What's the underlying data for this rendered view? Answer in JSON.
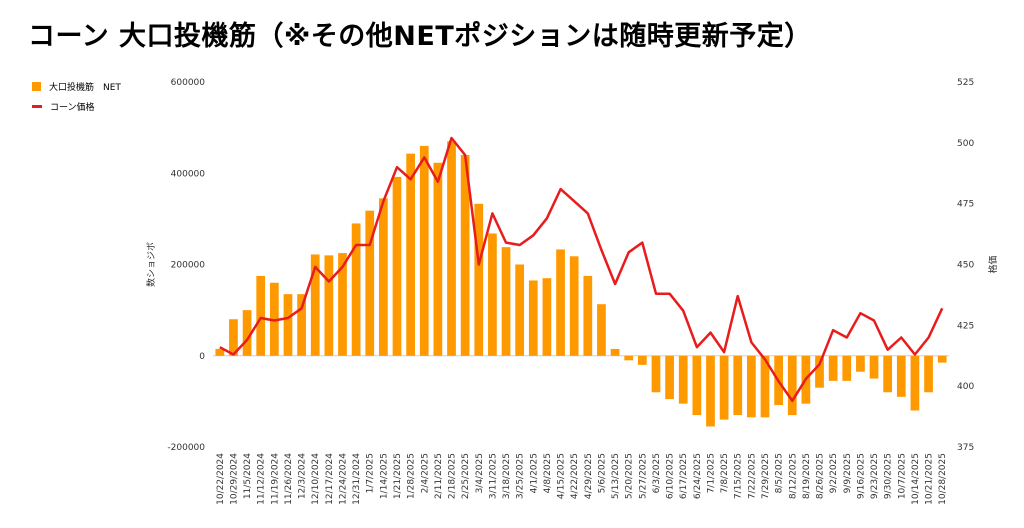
{
  "title": "コーン 大口投機筋（※その他NETポジションは随時更新予定）",
  "legend": [
    {
      "label": "大口投機筋　NET",
      "color": "#FF9900",
      "kind": "bar"
    },
    {
      "label": "コーン価格",
      "color": "#E81C1C",
      "kind": "line"
    }
  ],
  "chart_data": {
    "type": "bar+line",
    "categories": [
      "10/22/2024",
      "10/29/2024",
      "11/5/2024",
      "11/12/2024",
      "11/19/2024",
      "11/26/2024",
      "12/3/2024",
      "12/10/2024",
      "12/17/2024",
      "12/24/2024",
      "12/31/2024",
      "1/7/2025",
      "1/14/2025",
      "1/21/2025",
      "1/28/2025",
      "2/4/2025",
      "2/11/2025",
      "2/18/2025",
      "2/25/2025",
      "3/4/2025",
      "3/11/2025",
      "3/18/2025",
      "3/25/2025",
      "4/1/2025",
      "4/8/2025",
      "4/15/2025",
      "4/22/2025",
      "4/29/2025",
      "5/6/2025",
      "5/13/2025",
      "5/20/2025",
      "5/27/2025",
      "6/3/2025",
      "6/10/2025",
      "6/17/2025",
      "6/24/2025",
      "7/1/2025",
      "7/8/2025",
      "7/15/2025",
      "7/22/2025",
      "7/29/2025",
      "8/5/2025",
      "8/12/2025",
      "8/19/2025",
      "8/26/2025",
      "9/2/2025",
      "9/9/2025",
      "9/16/2025",
      "9/23/2025",
      "9/30/2025",
      "10/7/2025",
      "10/14/2025",
      "10/21/2025",
      "10/28/2025"
    ],
    "series": [
      {
        "name": "大口投機筋　NET",
        "axis": "left",
        "type": "bar",
        "color": "#FF9900",
        "values": [
          15000,
          80000,
          100000,
          175000,
          160000,
          135000,
          135000,
          222000,
          220000,
          225000,
          290000,
          318000,
          345000,
          392000,
          443000,
          460000,
          423000,
          470000,
          440000,
          333000,
          268000,
          238000,
          200000,
          165000,
          170000,
          233000,
          218000,
          175000,
          113000,
          15000,
          -10000,
          -20000,
          -80000,
          -95000,
          -105000,
          -130000,
          -155000,
          -140000,
          -130000,
          -135000,
          -135000,
          -108000,
          -130000,
          -105000,
          -70000,
          -55000,
          -55000,
          -35000,
          -50000,
          -80000,
          -90000,
          -120000,
          -80000,
          -15000
        ]
      },
      {
        "name": "コーン価格",
        "axis": "right",
        "type": "line",
        "color": "#E81C1C",
        "values": [
          416,
          413,
          419,
          428,
          427,
          428,
          432,
          449,
          443,
          449,
          458,
          458,
          476,
          490,
          485,
          494,
          484,
          502,
          495,
          450,
          471,
          459,
          458,
          462,
          469,
          481,
          476,
          471,
          456,
          442,
          455,
          459,
          438,
          438,
          431,
          416,
          422,
          414,
          437,
          418,
          411,
          402,
          394,
          403,
          409,
          423,
          420,
          430,
          427,
          415,
          420,
          413,
          420,
          432
        ]
      }
    ],
    "y_left": {
      "label": "数ショジボ",
      "min": -200000,
      "max": 600000,
      "ticks": [
        -200000,
        0,
        200000,
        400000,
        600000
      ]
    },
    "y_right": {
      "label": "格価",
      "min": 375,
      "max": 525,
      "ticks": [
        375,
        400,
        425,
        450,
        475,
        500,
        525
      ]
    },
    "grid": false
  }
}
